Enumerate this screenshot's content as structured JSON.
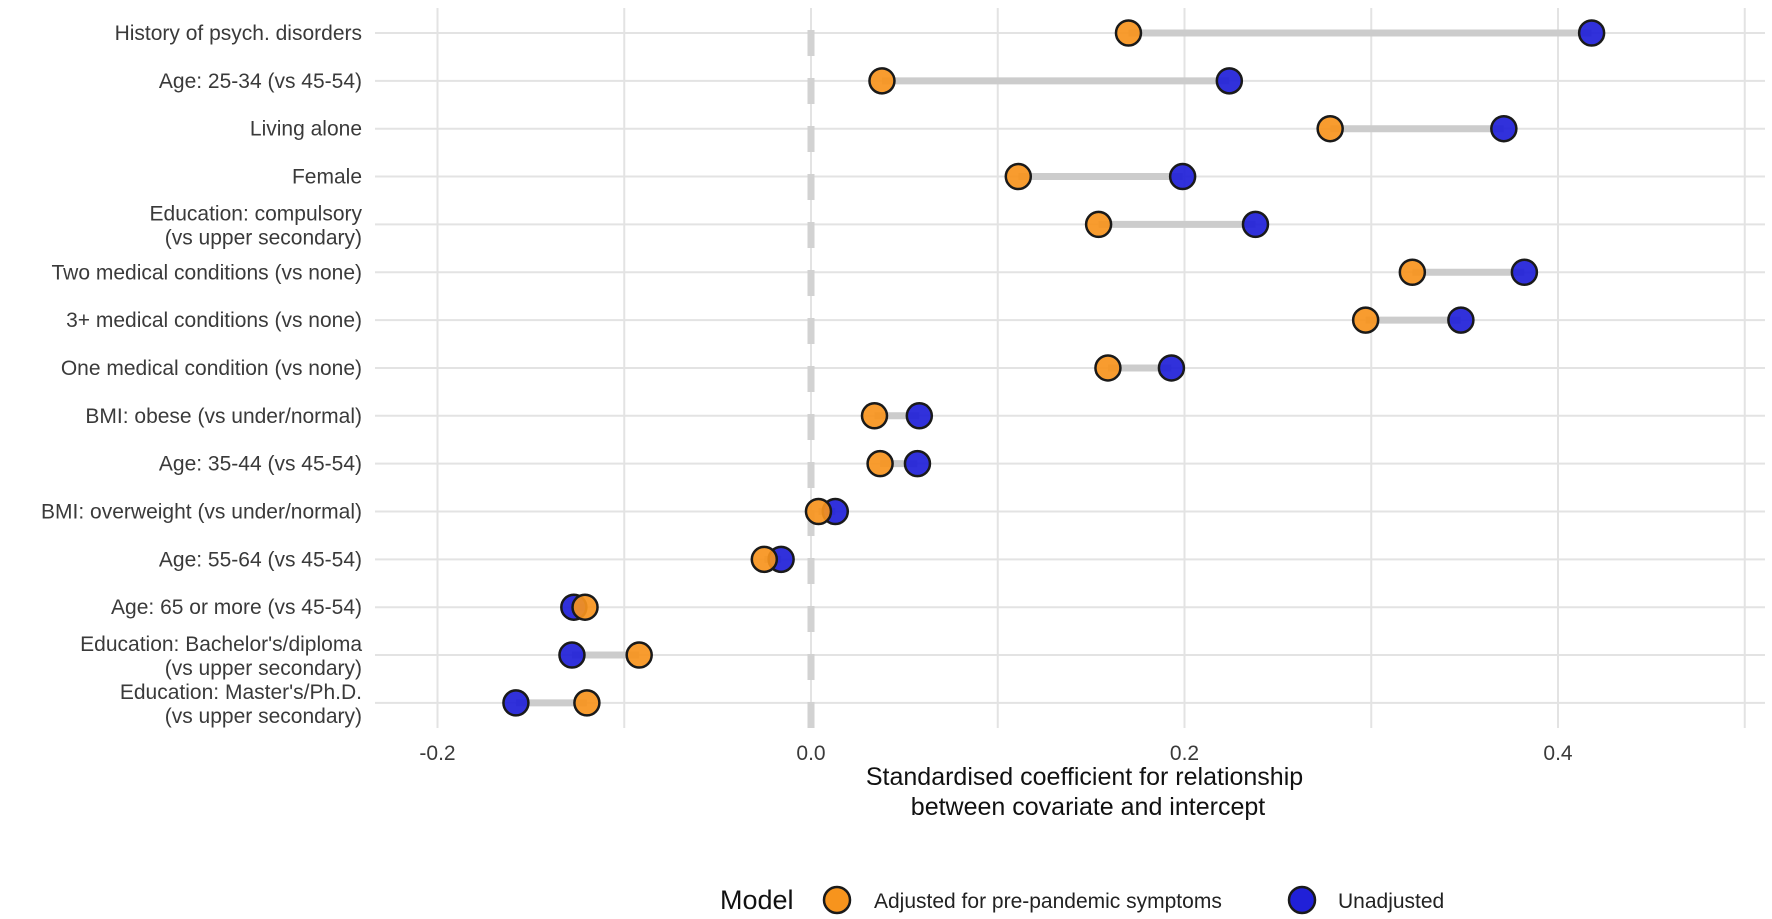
{
  "chart_data": {
    "type": "dumbbell",
    "xlabel_lines": [
      "Standardised coefficient for relationship",
      "between covariate and intercept"
    ],
    "xlim": [
      -0.22,
      0.52
    ],
    "xticks": [
      -0.2,
      0.0,
      0.2,
      0.4
    ],
    "xtick_labels": [
      "-0.2",
      "0.0",
      "0.2",
      "0.4"
    ],
    "reference_line": 0.0,
    "legend": {
      "title": "Model",
      "placement": "bottom",
      "entries": [
        {
          "key": "adjusted",
          "label": "Adjusted for pre-pandemic symptoms",
          "color": "#f7941d"
        },
        {
          "key": "unadjusted",
          "label": "Unadjusted",
          "color": "#2020d8"
        }
      ]
    },
    "segment_color": "#cccccc",
    "categories": [
      {
        "label": [
          "History of psych. disorders"
        ],
        "adjusted": 0.17,
        "unadjusted": 0.418
      },
      {
        "label": [
          "Age: 25-34 (vs 45-54)"
        ],
        "adjusted": 0.038,
        "unadjusted": 0.224
      },
      {
        "label": [
          "Living alone"
        ],
        "adjusted": 0.278,
        "unadjusted": 0.371
      },
      {
        "label": [
          "Female"
        ],
        "adjusted": 0.111,
        "unadjusted": 0.199
      },
      {
        "label": [
          "Education: compulsory",
          "(vs upper secondary)"
        ],
        "adjusted": 0.154,
        "unadjusted": 0.238
      },
      {
        "label": [
          "Two medical conditions (vs none)"
        ],
        "adjusted": 0.322,
        "unadjusted": 0.382
      },
      {
        "label": [
          "3+ medical conditions (vs none)"
        ],
        "adjusted": 0.297,
        "unadjusted": 0.348
      },
      {
        "label": [
          "One medical condition (vs none)"
        ],
        "adjusted": 0.159,
        "unadjusted": 0.193
      },
      {
        "label": [
          "BMI: obese (vs under/normal)"
        ],
        "adjusted": 0.034,
        "unadjusted": 0.058
      },
      {
        "label": [
          "Age: 35-44 (vs 45-54)"
        ],
        "adjusted": 0.037,
        "unadjusted": 0.057
      },
      {
        "label": [
          "BMI: overweight (vs under/normal)"
        ],
        "adjusted": 0.004,
        "unadjusted": 0.013
      },
      {
        "label": [
          "Age: 55-64 (vs 45-54)"
        ],
        "adjusted": -0.025,
        "unadjusted": -0.016
      },
      {
        "label": [
          "Age: 65 or more (vs 45-54)"
        ],
        "adjusted": -0.121,
        "unadjusted": -0.127
      },
      {
        "label": [
          "Education: Bachelor's/diploma",
          "(vs upper secondary)"
        ],
        "adjusted": -0.092,
        "unadjusted": -0.128
      },
      {
        "label": [
          "Education: Master's/Ph.D.",
          "(vs upper secondary)"
        ],
        "adjusted": -0.12,
        "unadjusted": -0.158
      }
    ]
  }
}
